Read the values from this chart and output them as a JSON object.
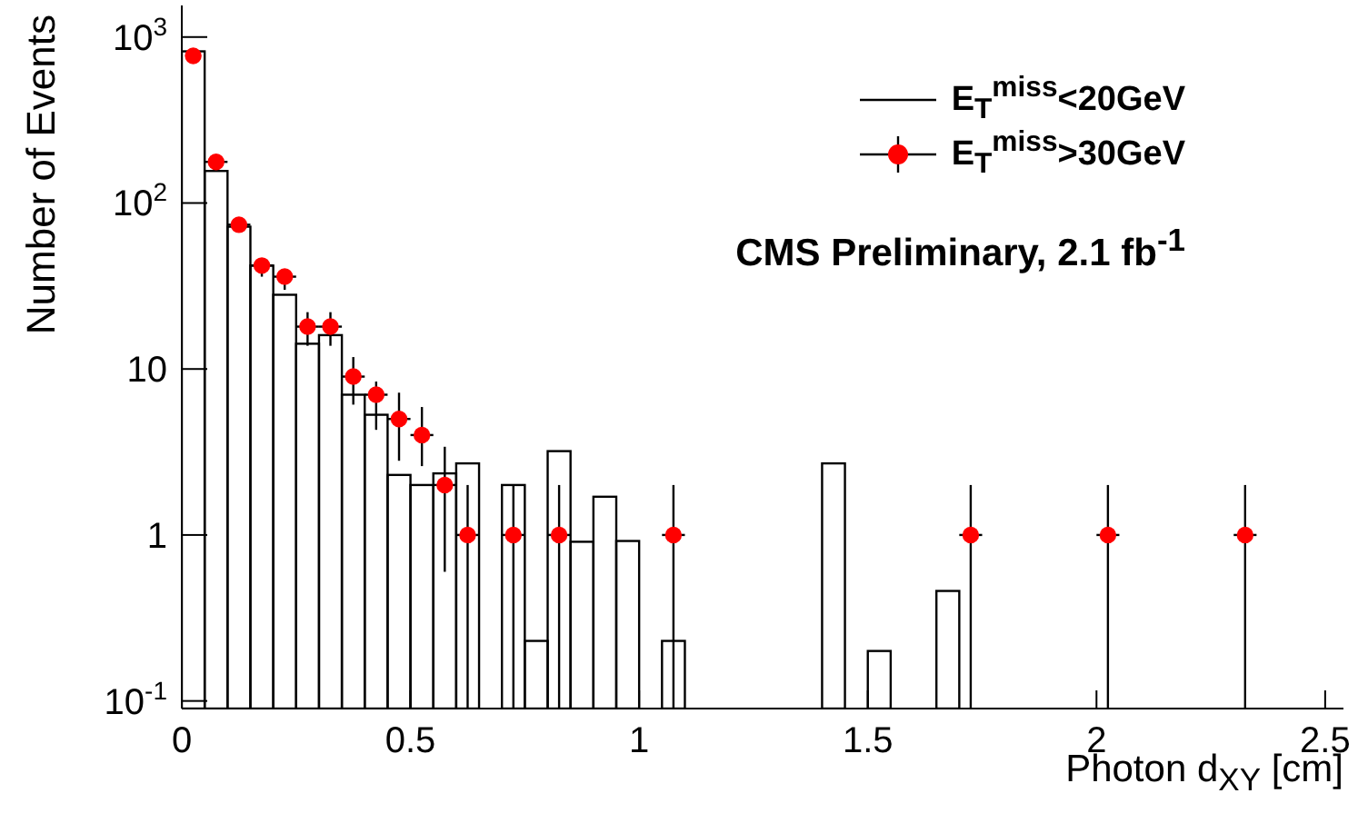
{
  "chart_data": {
    "type": "histogram",
    "xlabel": "Photon d$_{XY}$ [cm]",
    "ylabel": "Number of Events",
    "annotations": [
      "CMS Preliminary, 2.1 fb$^{-1}$"
    ],
    "log": "y",
    "xlim": [
      0,
      2.54
    ],
    "xticks": [
      0,
      0.5,
      1,
      1.5,
      2,
      2.5
    ],
    "ylim": [
      0.09,
      1550
    ],
    "yticks": [
      {
        "value": 0.1,
        "label": "10$^{-1}$"
      },
      1,
      10,
      {
        "value": 100,
        "label": "10$^{2}$"
      },
      {
        "value": 1000,
        "label": "10$^{3}$"
      }
    ],
    "legend": "top right",
    "series": [
      {
        "name": "E$_{T}$$^{miss}$<20GeV",
        "color": "#000000",
        "bins": [
          0,
          0.05,
          0.1,
          0.15,
          0.2,
          0.25,
          0.3,
          0.35,
          0.4,
          0.45,
          0.5,
          0.55,
          0.6,
          0.65,
          0.7,
          0.75,
          0.8,
          0.85,
          0.9,
          0.95,
          1,
          1.05,
          1.1,
          1.15,
          1.2,
          1.25,
          1.3,
          1.35,
          1.4,
          1.45,
          1.5,
          1.55,
          1.6,
          1.65,
          1.7,
          1.75,
          1.8,
          1.85,
          1.9,
          1.95,
          2,
          2.05,
          2.1,
          2.15,
          2.2,
          2.25,
          2.3,
          2.35,
          2.4,
          2.45,
          2.5
        ],
        "values": [
          820,
          156,
          72,
          42,
          28,
          14.2,
          16,
          7,
          5.3,
          2.3,
          2.0,
          2.35,
          2.7,
          null,
          2.0,
          0.23,
          3.2,
          0.91,
          1.7,
          0.92,
          null,
          0.23,
          null,
          null,
          null,
          null,
          null,
          null,
          2.7,
          null,
          0.2,
          null,
          null,
          0.46,
          null,
          null,
          null,
          null,
          null,
          null,
          null,
          null,
          null,
          null,
          null,
          null,
          null,
          null,
          null,
          null
        ]
      },
      {
        "name": "E$_{T}$$^{miss}$>30GeV",
        "type": "scatter",
        "color": "#ff0000",
        "marker": "circle",
        "x": [
          0.025,
          0.075,
          0.125,
          0.175,
          0.225,
          0.275,
          0.325,
          0.375,
          0.425,
          0.475,
          0.525,
          0.575,
          0.625,
          0.725,
          0.825,
          1.075,
          1.725,
          2.025,
          2.325
        ],
        "values": [
          770,
          177,
          74,
          42,
          36,
          18,
          18,
          9,
          7,
          5,
          4,
          2,
          1,
          1,
          1,
          1,
          1,
          1,
          1
        ],
        "errors": [
          null,
          null,
          null,
          [
            36,
            46
          ],
          [
            30,
            40
          ],
          [
            13.8,
            22
          ],
          [
            13.8,
            22
          ],
          [
            6.1,
            11.8
          ],
          [
            4.3,
            8.4
          ],
          [
            2.8,
            7.2
          ],
          [
            2.6,
            5.9
          ],
          [
            0.6,
            3.4
          ],
          [
            0.09,
            2
          ],
          [
            0.09,
            2
          ],
          [
            0.09,
            2
          ],
          [
            0.09,
            2
          ],
          [
            0.09,
            2
          ],
          [
            0.09,
            2
          ],
          [
            0.09,
            2
          ]
        ],
        "xerrors": [
          null,
          0.025,
          0.025,
          0.025,
          0.025,
          0.025,
          0.025,
          0.025,
          0.025,
          0.025,
          0.025,
          0.025,
          0.025,
          0.025,
          0.025,
          0.025,
          0.025,
          0.025,
          0.025
        ]
      }
    ]
  }
}
